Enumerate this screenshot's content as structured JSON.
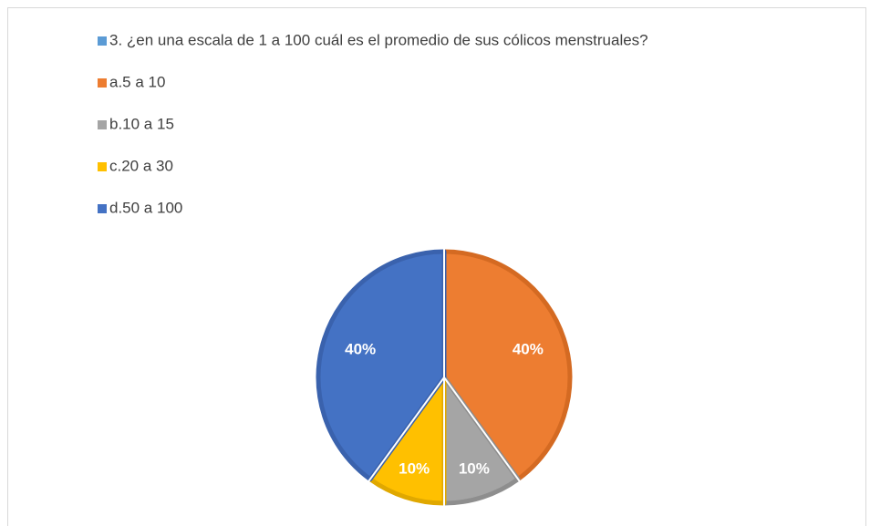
{
  "chart_data": {
    "type": "pie",
    "categories": [
      "3. ¿en una escala de 1 a 100 cuál es el promedio de sus cólicos menstruales?",
      "a.5 a 10",
      "b.10 a 15",
      "c.20 a 30",
      "d.50 a 100"
    ],
    "values": [
      0,
      40,
      10,
      10,
      40
    ],
    "value_labels": [
      null,
      "40%",
      "10%",
      "10%",
      "40%"
    ],
    "colors": [
      "#5b9bd5",
      "#ed7d31",
      "#a5a5a5",
      "#ffc000",
      "#4472c4"
    ],
    "border_colors": [
      "#4a86bd",
      "#d46a22",
      "#8e8e8e",
      "#e0a800",
      "#3a62ad"
    ],
    "legend": "top-left"
  }
}
